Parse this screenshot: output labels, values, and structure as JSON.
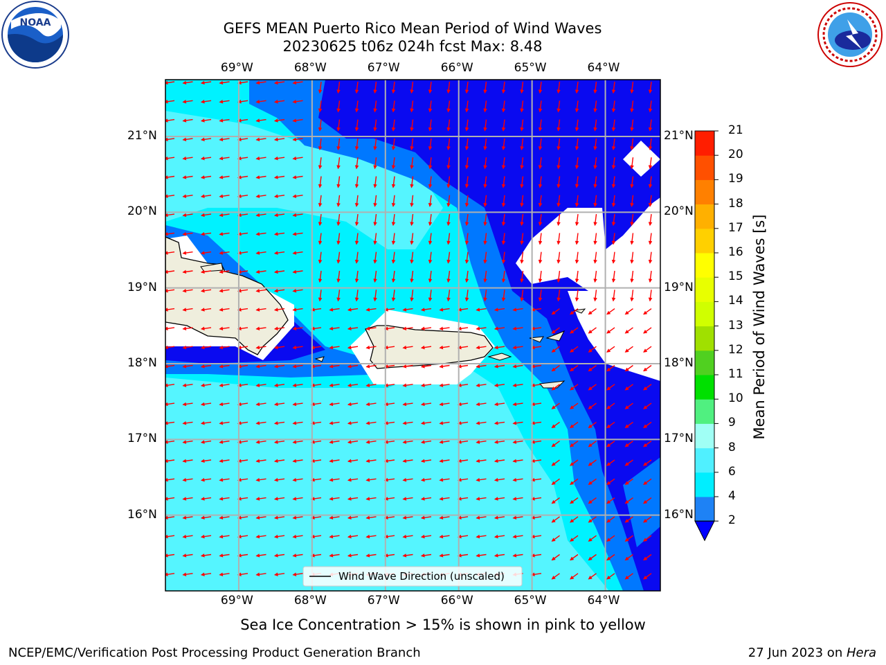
{
  "title_line1": "GEFS MEAN Puerto Rico Mean Period of Wind Waves",
  "title_line2": "20230625 t06z 024h fcst   Max: 8.48",
  "subcaption": "Sea Ice Concentration > 15% is shown in pink to yellow",
  "footer_left": "NCEP/EMC/Verification Post Processing Product Generation Branch",
  "footer_right_date": "27 Jun 2023 on ",
  "footer_right_host": "Hera",
  "legend_label": "Wind Wave Direction (unscaled)",
  "logos": {
    "left": "NOAA",
    "right": "NATIONAL WEATHER SERVICE"
  },
  "map": {
    "lon_labels": [
      "69°W",
      "68°W",
      "67°W",
      "66°W",
      "65°W",
      "64°W"
    ],
    "lat_labels": [
      "21°N",
      "20°N",
      "19°N",
      "18°N",
      "17°N",
      "16°N"
    ],
    "lon_range": [
      -70.0,
      -63.25
    ],
    "lat_range": [
      15.0,
      21.75
    ]
  },
  "colorbar": {
    "label": "Mean Period of Wind Waves [s]",
    "ticks": [
      "2",
      "4",
      "6",
      "8",
      "9",
      "10",
      "11",
      "12",
      "13",
      "14",
      "15",
      "16",
      "17",
      "18",
      "19",
      "20",
      "21"
    ],
    "colors": [
      "#0a1ef0",
      "#1e82f5",
      "#00eeff",
      "#50f0ff",
      "#a0fff5",
      "#50f080",
      "#00e000",
      "#50d020",
      "#a0e000",
      "#d0ff00",
      "#e8ff00",
      "#ffff00",
      "#ffd000",
      "#ffb000",
      "#ff8000",
      "#ff5000",
      "#ff1e00"
    ],
    "under_color": "#0000ff"
  },
  "colors": {
    "deep_blue": "#0a0af0",
    "mid_blue": "#0078ff",
    "cyan": "#00ffff",
    "light_cyan": "#55f5ff",
    "land": "#efeedd",
    "arrow": "#ff0000"
  }
}
